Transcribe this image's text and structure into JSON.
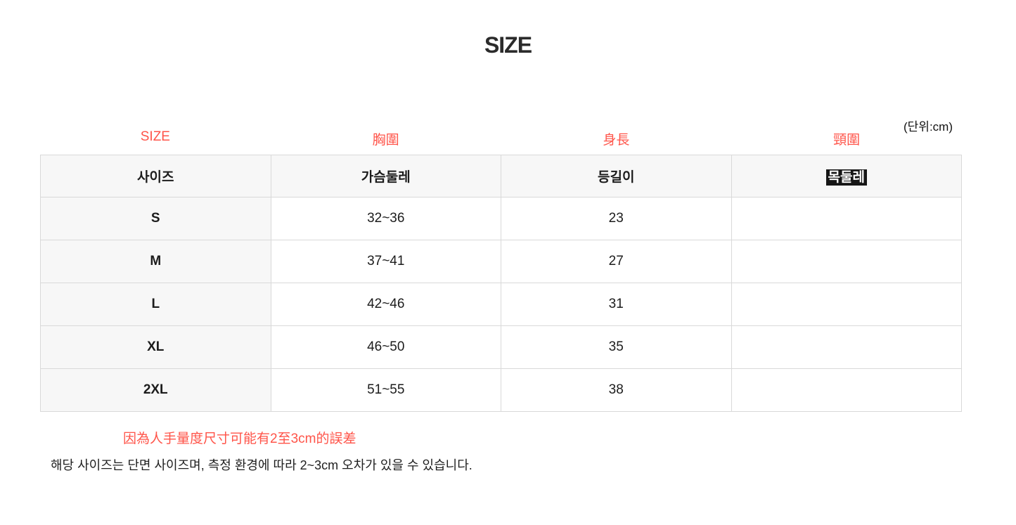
{
  "title": "SIZE",
  "accent_color": "#ff5449",
  "unit_note": "(단위:cm)",
  "red_labels": {
    "size": "SIZE",
    "chest": "胸圍",
    "length": "身長",
    "neck": "頸圍"
  },
  "table": {
    "headers": [
      "사이즈",
      "가슴둘레",
      "등길이",
      "목둘레"
    ],
    "rows": [
      {
        "size": "S",
        "chest": "32~36",
        "length": "23",
        "neck": ""
      },
      {
        "size": "M",
        "chest": "37~41",
        "length": "27",
        "neck": ""
      },
      {
        "size": "L",
        "chest": "42~46",
        "length": "31",
        "neck": ""
      },
      {
        "size": "XL",
        "chest": "46~50",
        "length": "35",
        "neck": ""
      },
      {
        "size": "2XL",
        "chest": "51~55",
        "length": "38",
        "neck": ""
      }
    ]
  },
  "notes": {
    "chinese_red": "因為人手量度尺寸可能有2至3cm的誤差",
    "korean": "해당 사이즈는 단면 사이즈며, 측정 환경에 따라 2~3cm 오차가 있을 수 있습니다."
  }
}
